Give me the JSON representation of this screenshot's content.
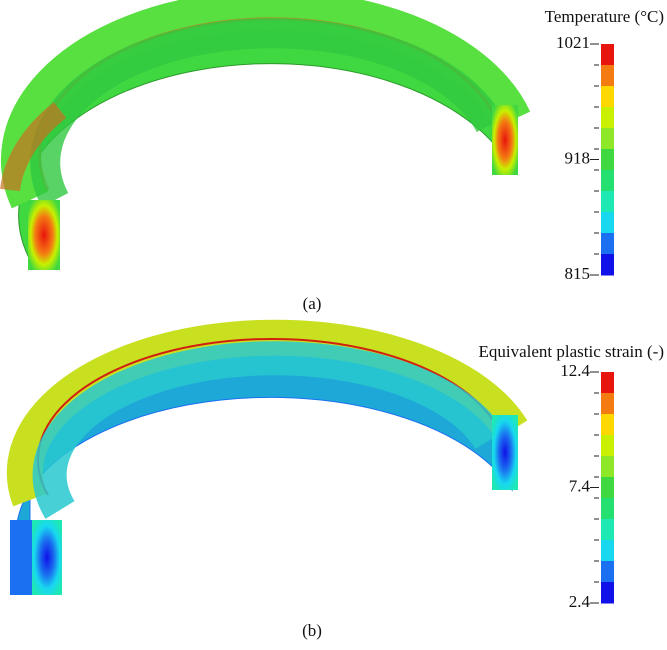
{
  "panels": [
    {
      "caption": "(a)",
      "colorbar": {
        "title": "Temperature (°C)",
        "ticks": [
          1021,
          918,
          815
        ],
        "colors": [
          "#e8140e",
          "#f47a12",
          "#ffd800",
          "#c8f000",
          "#8ee828",
          "#40d840",
          "#24e070",
          "#1ee8b4",
          "#18d8f0",
          "#1a70f0",
          "#1010e8"
        ]
      }
    },
    {
      "caption": "(b)",
      "colorbar": {
        "title": "Equivalent plastic strain (-)",
        "ticks": [
          12.4,
          7.4,
          2.4
        ],
        "colors": [
          "#e8140e",
          "#f47a12",
          "#ffd800",
          "#c8f000",
          "#8ee828",
          "#40d840",
          "#24e070",
          "#1ee8b4",
          "#18d8f0",
          "#1a70f0",
          "#1010e8"
        ]
      }
    }
  ]
}
